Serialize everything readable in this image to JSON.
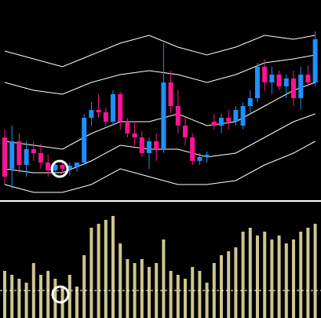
{
  "chart_data": [
    {
      "type": "candlestick",
      "up_color": "#1e90ff",
      "down_color": "#ff1493",
      "ylim": [
        0,
        255
      ],
      "open": [
        80,
        40,
        75,
        45,
        65,
        60,
        48,
        38,
        45,
        40,
        42,
        48,
        105,
        115,
        112,
        100,
        135,
        100,
        85,
        80,
        60,
        75,
        65,
        150,
        120,
        95,
        80,
        50,
        55,
        100,
        95,
        105,
        100,
        95,
        120,
        130,
        170,
        150,
        160,
        145,
        155,
        130,
        160,
        150
      ],
      "high": [
        90,
        95,
        85,
        75,
        75,
        72,
        58,
        50,
        52,
        48,
        48,
        110,
        125,
        135,
        118,
        140,
        138,
        105,
        100,
        88,
        80,
        85,
        200,
        165,
        140,
        105,
        85,
        60,
        62,
        110,
        110,
        115,
        120,
        125,
        140,
        175,
        180,
        170,
        165,
        160,
        165,
        170,
        172,
        215
      ],
      "low": [
        20,
        15,
        35,
        30,
        50,
        40,
        30,
        30,
        35,
        32,
        36,
        45,
        95,
        105,
        95,
        95,
        90,
        80,
        70,
        55,
        40,
        50,
        60,
        110,
        85,
        70,
        45,
        45,
        48,
        90,
        85,
        90,
        95,
        90,
        110,
        125,
        140,
        135,
        140,
        130,
        120,
        115,
        145,
        145
      ],
      "close": [
        30,
        75,
        45,
        65,
        60,
        48,
        38,
        45,
        40,
        44,
        48,
        105,
        115,
        112,
        100,
        135,
        100,
        85,
        80,
        60,
        75,
        65,
        150,
        120,
        95,
        80,
        50,
        55,
        58,
        95,
        105,
        100,
        115,
        120,
        130,
        170,
        150,
        160,
        145,
        155,
        130,
        160,
        150,
        205
      ],
      "bands": {
        "x": [
          0,
          4,
          8,
          12,
          16,
          20,
          24,
          28,
          32,
          36,
          40,
          43
        ],
        "color": "#ffffff",
        "series": [
          {
            "values": [
              190,
              180,
              170,
              185,
              200,
              210,
              195,
              185,
              195,
              210,
              205,
              210
            ]
          },
          {
            "values": [
              150,
              140,
              135,
              150,
              160,
              165,
              160,
              150,
              160,
              175,
              180,
              185
            ]
          },
          {
            "values": [
              75,
              70,
              65,
              85,
              100,
              100,
              110,
              95,
              100,
              120,
              140,
              150
            ]
          },
          {
            "values": [
              40,
              35,
              35,
              50,
              70,
              65,
              65,
              55,
              60,
              80,
              100,
              110
            ]
          },
          {
            "values": [
              20,
              10,
              10,
              20,
              40,
              30,
              20,
              20,
              25,
              45,
              60,
              75
            ]
          }
        ]
      }
    },
    {
      "type": "bar",
      "color": "#cfc58e",
      "ylim": [
        0,
        147
      ],
      "values": [
        60,
        55,
        50,
        45,
        70,
        55,
        60,
        50,
        40,
        55,
        40,
        80,
        115,
        120,
        125,
        130,
        95,
        75,
        70,
        75,
        65,
        70,
        100,
        60,
        55,
        50,
        65,
        60,
        45,
        70,
        80,
        85,
        90,
        110,
        115,
        105,
        110,
        100,
        105,
        95,
        100,
        110,
        115,
        120
      ],
      "reference_line": 35,
      "reference_color": "#ffffff"
    }
  ]
}
